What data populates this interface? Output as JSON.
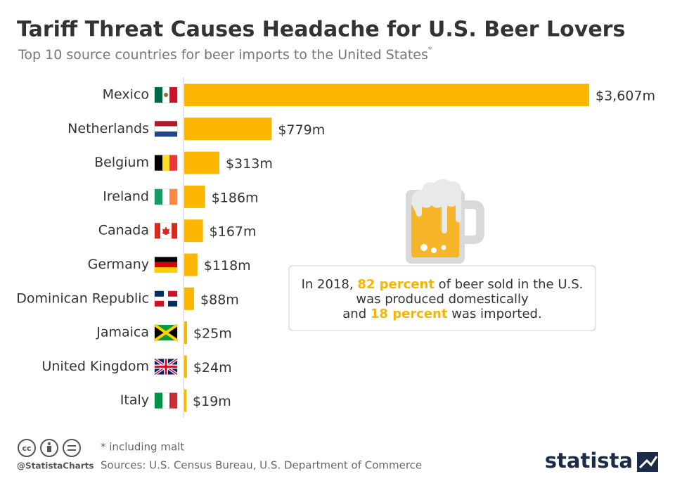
{
  "chart_data": {
    "type": "bar",
    "orientation": "horizontal",
    "title": "Tariff Threat Causes Headache for U.S. Beer Lovers",
    "subtitle": "Top 10 source countries for beer imports to the United States",
    "subtitle_mark": "*",
    "categories": [
      "Mexico",
      "Netherlands",
      "Belgium",
      "Ireland",
      "Canada",
      "Germany",
      "Dominican Republic",
      "Jamaica",
      "United Kingdom",
      "Italy"
    ],
    "values": [
      3607,
      779,
      313,
      186,
      167,
      118,
      88,
      25,
      24,
      19
    ],
    "value_labels": [
      "$3,607m",
      "$779m",
      "$313m",
      "$186m",
      "$167m",
      "$118m",
      "$88m",
      "$25m",
      "$24m",
      "$19m"
    ],
    "color": "#fbb700"
  },
  "annotation": {
    "highlight_color": "#f7b500",
    "lines": [
      [
        "In 2018, ",
        "82 percent",
        " of beer sold in the U.S."
      ],
      [
        "was produced domestically"
      ],
      [
        "and ",
        "18 percent",
        " was imported."
      ]
    ]
  },
  "footnote": "* including malt",
  "source": "Sources: U.S. Census Bureau, U.S. Department of Commerce",
  "credit": "@StatistaCharts",
  "brand": "statista"
}
